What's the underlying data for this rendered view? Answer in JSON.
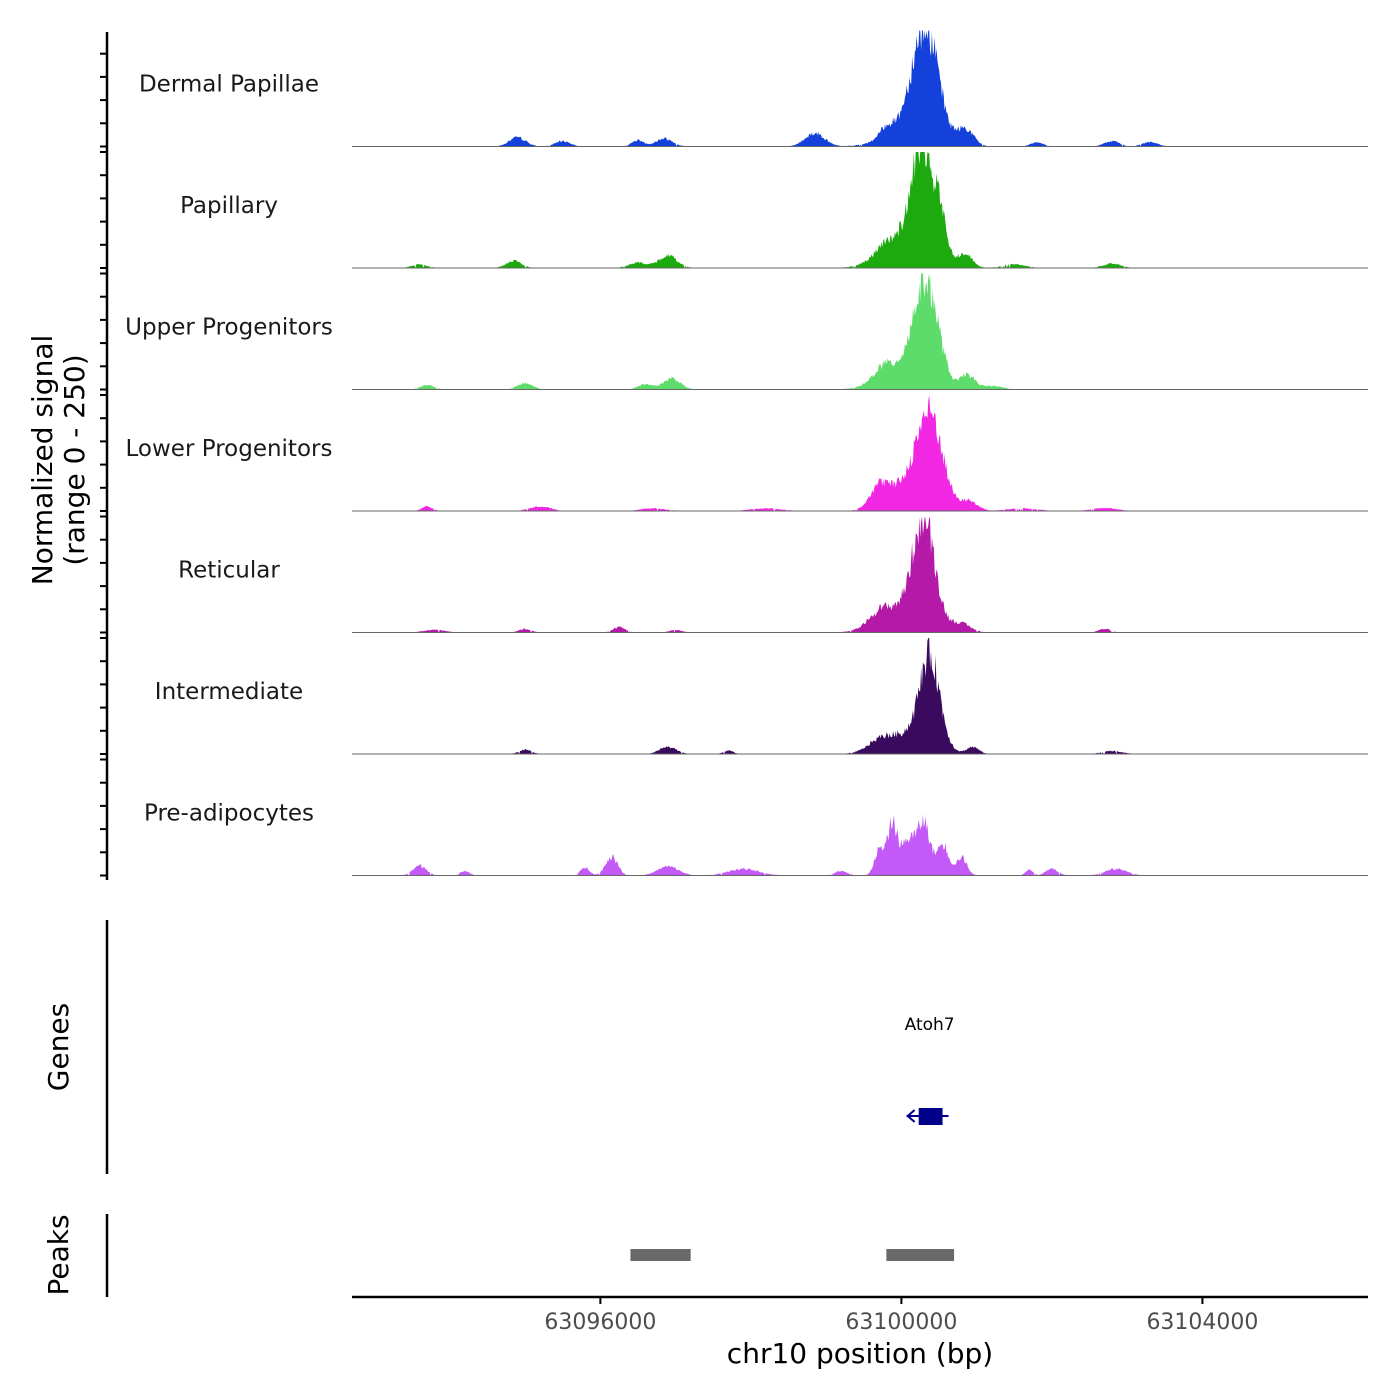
{
  "chart_data": {
    "type": "area",
    "title": "",
    "ylabel_line1": "Normalized signal",
    "ylabel_line2": "(range 0 - 250)",
    "xlabel": "chr10 position (bp)",
    "chromosome": "chr10",
    "x_range": [
      63092700,
      63106200
    ],
    "y_range": [
      0,
      250
    ],
    "x_ticks": [
      63096000,
      63100000,
      63104000
    ],
    "x_tick_labels": [
      "63096000",
      "63100000",
      "63104000"
    ],
    "signal_start": 63093350,
    "signal_end": 63105050,
    "tracks": [
      {
        "name": "Dermal Papillae",
        "color": "#1440DB",
        "peaks": [
          {
            "pos": 63100320,
            "h": 240,
            "w": 170
          },
          {
            "pos": 63100100,
            "h": 45,
            "w": 300
          },
          {
            "pos": 63100850,
            "h": 38,
            "w": 110
          },
          {
            "pos": 63099800,
            "h": 20,
            "w": 80
          },
          {
            "pos": 63098850,
            "h": 30,
            "w": 130
          },
          {
            "pos": 63096850,
            "h": 18,
            "w": 110
          },
          {
            "pos": 63096500,
            "h": 14,
            "w": 80
          },
          {
            "pos": 63094900,
            "h": 20,
            "w": 110
          },
          {
            "pos": 63095500,
            "h": 12,
            "w": 100
          },
          {
            "pos": 63102800,
            "h": 12,
            "w": 100
          },
          {
            "pos": 63101800,
            "h": 10,
            "w": 80
          },
          {
            "pos": 63103300,
            "h": 10,
            "w": 100
          }
        ]
      },
      {
        "name": "Papillary",
        "color": "#1DAA0F",
        "peaks": [
          {
            "pos": 63100280,
            "h": 230,
            "w": 140
          },
          {
            "pos": 63100100,
            "h": 60,
            "w": 320
          },
          {
            "pos": 63100520,
            "h": 70,
            "w": 90
          },
          {
            "pos": 63100850,
            "h": 30,
            "w": 90
          },
          {
            "pos": 63099800,
            "h": 22,
            "w": 140
          },
          {
            "pos": 63096900,
            "h": 28,
            "w": 120
          },
          {
            "pos": 63096500,
            "h": 12,
            "w": 120
          },
          {
            "pos": 63094850,
            "h": 16,
            "w": 100
          },
          {
            "pos": 63093600,
            "h": 8,
            "w": 100
          },
          {
            "pos": 63102800,
            "h": 10,
            "w": 120
          },
          {
            "pos": 63101500,
            "h": 8,
            "w": 150
          }
        ]
      },
      {
        "name": "Upper Progenitors",
        "color": "#5EDC6B",
        "peaks": [
          {
            "pos": 63100330,
            "h": 215,
            "w": 160
          },
          {
            "pos": 63100050,
            "h": 50,
            "w": 300
          },
          {
            "pos": 63100880,
            "h": 32,
            "w": 90
          },
          {
            "pos": 63099750,
            "h": 25,
            "w": 120
          },
          {
            "pos": 63096950,
            "h": 25,
            "w": 110
          },
          {
            "pos": 63096600,
            "h": 12,
            "w": 100
          },
          {
            "pos": 63095000,
            "h": 14,
            "w": 100
          },
          {
            "pos": 63093700,
            "h": 10,
            "w": 90
          },
          {
            "pos": 63101200,
            "h": 8,
            "w": 140
          }
        ]
      },
      {
        "name": "Lower Progenitors",
        "color": "#F127E4",
        "peaks": [
          {
            "pos": 63100380,
            "h": 200,
            "w": 170
          },
          {
            "pos": 63100050,
            "h": 55,
            "w": 260
          },
          {
            "pos": 63099700,
            "h": 40,
            "w": 120
          },
          {
            "pos": 63100900,
            "h": 22,
            "w": 110
          },
          {
            "pos": 63093700,
            "h": 10,
            "w": 70
          },
          {
            "pos": 63095200,
            "h": 10,
            "w": 140
          },
          {
            "pos": 63096700,
            "h": 6,
            "w": 160
          },
          {
            "pos": 63098200,
            "h": 6,
            "w": 200
          },
          {
            "pos": 63101600,
            "h": 6,
            "w": 200
          },
          {
            "pos": 63102700,
            "h": 7,
            "w": 160
          }
        ]
      },
      {
        "name": "Reticular",
        "color": "#B519A8",
        "peaks": [
          {
            "pos": 63100300,
            "h": 210,
            "w": 140
          },
          {
            "pos": 63100100,
            "h": 60,
            "w": 320
          },
          {
            "pos": 63099700,
            "h": 25,
            "w": 140
          },
          {
            "pos": 63100800,
            "h": 16,
            "w": 120
          },
          {
            "pos": 63096250,
            "h": 12,
            "w": 80
          },
          {
            "pos": 63095000,
            "h": 8,
            "w": 80
          },
          {
            "pos": 63093800,
            "h": 6,
            "w": 140
          },
          {
            "pos": 63102700,
            "h": 8,
            "w": 80
          },
          {
            "pos": 63097000,
            "h": 6,
            "w": 80
          }
        ]
      },
      {
        "name": "Intermediate",
        "color": "#3A0A5E",
        "peaks": [
          {
            "pos": 63100380,
            "h": 195,
            "w": 130
          },
          {
            "pos": 63100100,
            "h": 45,
            "w": 300
          },
          {
            "pos": 63099700,
            "h": 18,
            "w": 150
          },
          {
            "pos": 63100950,
            "h": 15,
            "w": 80
          },
          {
            "pos": 63096900,
            "h": 16,
            "w": 110
          },
          {
            "pos": 63095000,
            "h": 10,
            "w": 80
          },
          {
            "pos": 63097700,
            "h": 8,
            "w": 60
          },
          {
            "pos": 63102800,
            "h": 7,
            "w": 130
          }
        ]
      },
      {
        "name": "Pre-adipocytes",
        "color": "#C35AF8",
        "peaks": [
          {
            "pos": 63099880,
            "h": 115,
            "w": 70
          },
          {
            "pos": 63100300,
            "h": 115,
            "w": 80
          },
          {
            "pos": 63100100,
            "h": 80,
            "w": 90
          },
          {
            "pos": 63100550,
            "h": 70,
            "w": 80
          },
          {
            "pos": 63099700,
            "h": 55,
            "w": 60
          },
          {
            "pos": 63100800,
            "h": 40,
            "w": 70
          },
          {
            "pos": 63096150,
            "h": 42,
            "w": 80
          },
          {
            "pos": 63095800,
            "h": 18,
            "w": 60
          },
          {
            "pos": 63093600,
            "h": 22,
            "w": 90
          },
          {
            "pos": 63096900,
            "h": 20,
            "w": 140
          },
          {
            "pos": 63097900,
            "h": 15,
            "w": 200
          },
          {
            "pos": 63102000,
            "h": 15,
            "w": 80
          },
          {
            "pos": 63102850,
            "h": 15,
            "w": 140
          },
          {
            "pos": 63094200,
            "h": 10,
            "w": 60
          },
          {
            "pos": 63099200,
            "h": 10,
            "w": 80
          },
          {
            "pos": 63101700,
            "h": 12,
            "w": 50
          }
        ]
      }
    ],
    "genes_label": "Genes",
    "genes": [
      {
        "name": "Atoh7",
        "start": 63100150,
        "end": 63100600,
        "strand": "-",
        "color": "#00008B"
      }
    ],
    "peaks_label": "Peaks",
    "peak_regions": [
      {
        "start": 63096400,
        "end": 63097200
      },
      {
        "start": 63099800,
        "end": 63100700
      }
    ],
    "peak_color": "#696969"
  }
}
